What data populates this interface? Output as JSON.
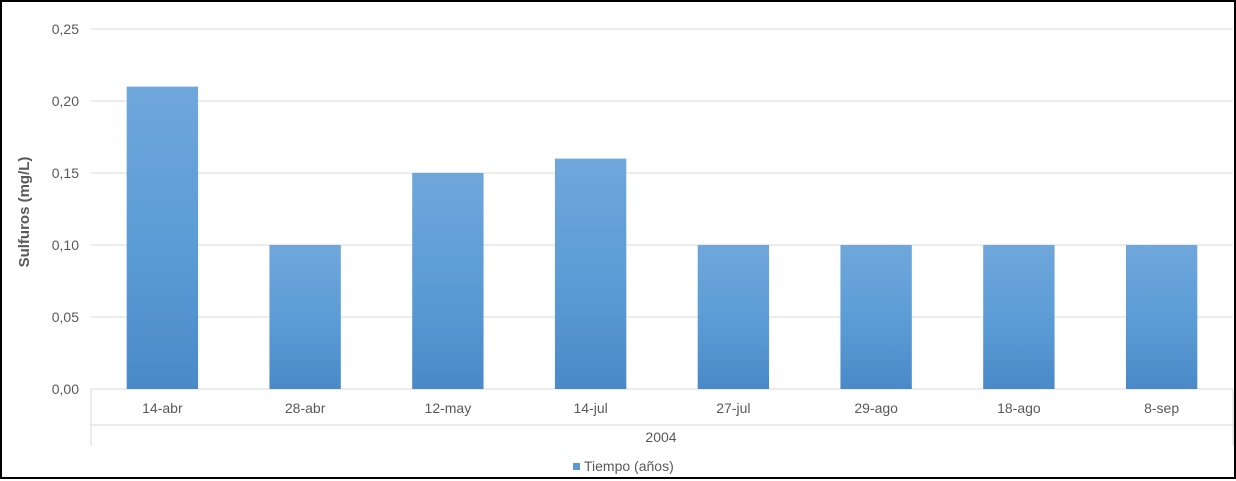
{
  "chart_data": {
    "type": "bar",
    "categories": [
      "14-abr",
      "28-abr",
      "12-may",
      "14-jul",
      "27-jul",
      "29-ago",
      "18-ago",
      "8-sep"
    ],
    "group_label": "2004",
    "values": [
      0.21,
      0.1,
      0.15,
      0.16,
      0.1,
      0.1,
      0.1,
      0.1
    ],
    "series": [
      {
        "name": "Tiempo (años)",
        "values": [
          0.21,
          0.1,
          0.15,
          0.16,
          0.1,
          0.1,
          0.1,
          0.1
        ]
      }
    ],
    "ylabel": "Sulfuros (mg/L)",
    "xlabel": "",
    "ylim": [
      0,
      0.25
    ],
    "yticks": [
      "0,00",
      "0,05",
      "0,10",
      "0,15",
      "0,20",
      "0,25"
    ],
    "grid": true,
    "legend": "bottom-center",
    "colors": {
      "bar_top": "#6fa7dc",
      "bar_mid": "#5b9bd5",
      "bar_bottom": "#4a89c8",
      "grid": "#d9d9d9",
      "text": "#595959"
    }
  }
}
